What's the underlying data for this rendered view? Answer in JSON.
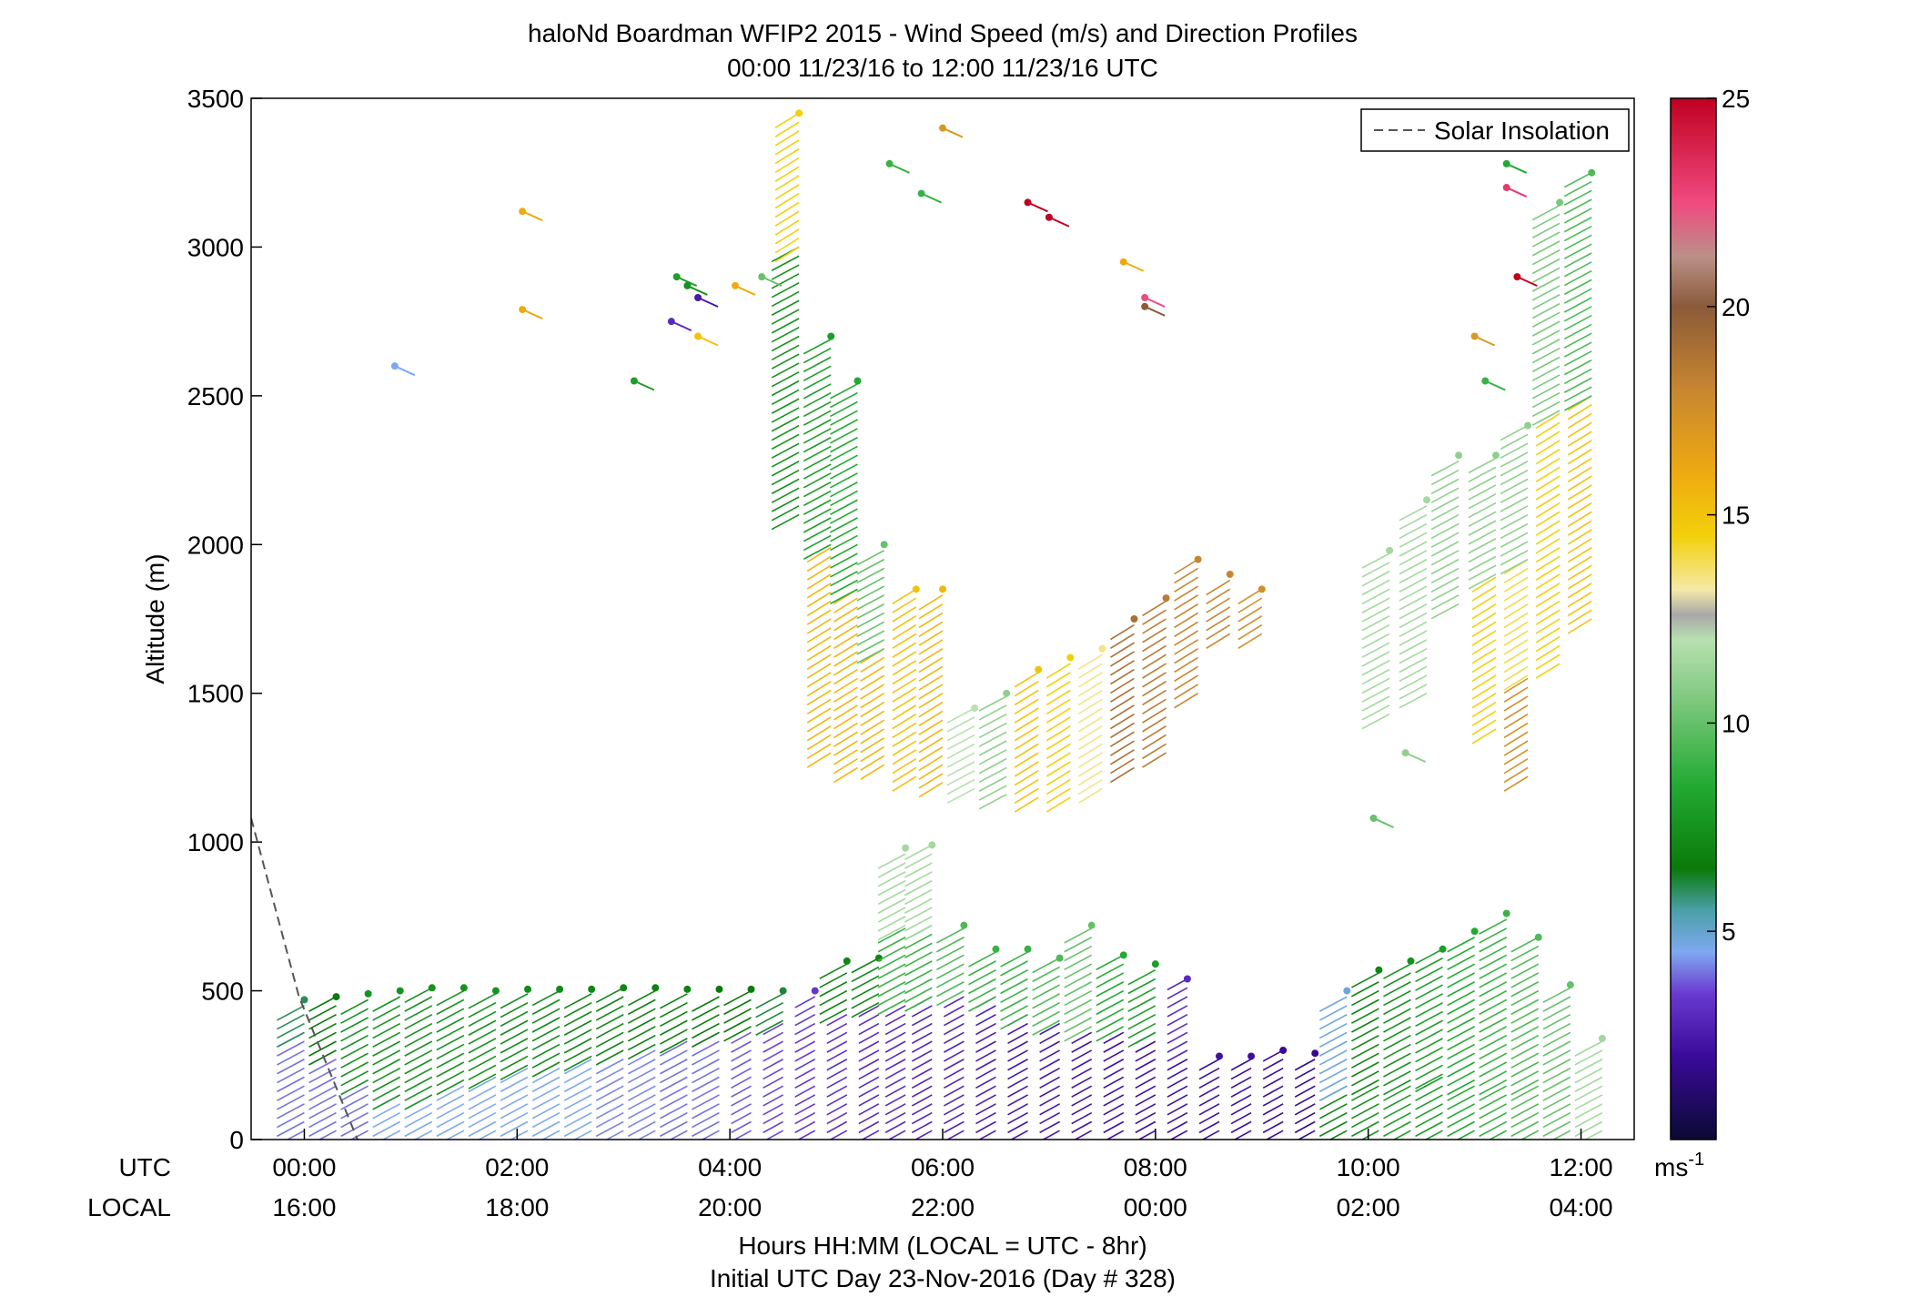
{
  "chart_data": {
    "type": "scatter",
    "title": "haloNd Boardman WFIP2 2015 - Wind Speed (m/s) and Direction Profiles",
    "subtitle": "00:00 11/23/16 to 12:00 11/23/16  UTC",
    "xlabel": "Hours HH:MM  (LOCAL = UTC - 8hr)",
    "xlabel2": "Initial UTC Day 23-Nov-2016 (Day # 328)",
    "ylabel": "Altitude (m)",
    "xlim_hours": [
      -0.5,
      12.5
    ],
    "ylim": [
      0,
      3500
    ],
    "yticks": [
      0,
      500,
      1000,
      1500,
      2000,
      2500,
      3000,
      3500
    ],
    "xtick_row_labels": {
      "utc": "UTC",
      "local": "LOCAL"
    },
    "xticks": [
      {
        "h": 0,
        "utc": "00:00",
        "local": "16:00"
      },
      {
        "h": 2,
        "utc": "02:00",
        "local": "18:00"
      },
      {
        "h": 4,
        "utc": "04:00",
        "local": "20:00"
      },
      {
        "h": 6,
        "utc": "06:00",
        "local": "22:00"
      },
      {
        "h": 8,
        "utc": "08:00",
        "local": "00:00"
      },
      {
        "h": 10,
        "utc": "10:00",
        "local": "02:00"
      },
      {
        "h": 12,
        "utc": "12:00",
        "local": "04:00"
      }
    ],
    "legend": {
      "position": "top-right",
      "entries": [
        "Solar Insolation"
      ]
    },
    "colorbar": {
      "min": 0,
      "max": 25,
      "ticks": [
        5,
        10,
        15,
        20,
        25
      ],
      "unit": "ms-1",
      "stops": [
        [
          0,
          "#0a0a33"
        ],
        [
          2,
          "#3a0a9a"
        ],
        [
          3.5,
          "#6a3ad0"
        ],
        [
          4.5,
          "#7fa8f0"
        ],
        [
          5.5,
          "#4aa0a8"
        ],
        [
          6.5,
          "#0a7a0a"
        ],
        [
          8.5,
          "#22aa33"
        ],
        [
          10.5,
          "#7cc87c"
        ],
        [
          12,
          "#b8e0b0"
        ],
        [
          12.6,
          "#a8a8a8"
        ],
        [
          13.2,
          "#f5e9a8"
        ],
        [
          14.5,
          "#f2d00a"
        ],
        [
          16,
          "#eeaa11"
        ],
        [
          18,
          "#c88630"
        ],
        [
          20,
          "#8a5a3a"
        ],
        [
          21.2,
          "#bb9088"
        ],
        [
          22.5,
          "#f04a80"
        ],
        [
          25,
          "#c00020"
        ]
      ]
    },
    "solar_insolation": [
      [
        -0.5,
        1080
      ],
      [
        -0.05,
        480
      ],
      [
        0.5,
        0
      ]
    ],
    "profiles": [
      {
        "t": 0.0,
        "top": 470,
        "segs": [
          [
            0,
            360,
            4
          ],
          [
            360,
            470,
            6
          ]
        ]
      },
      {
        "t": 0.3,
        "top": 480,
        "segs": [
          [
            0,
            300,
            4
          ],
          [
            300,
            480,
            6.5
          ]
        ]
      },
      {
        "t": 0.6,
        "top": 490,
        "segs": [
          [
            0,
            200,
            4
          ],
          [
            200,
            490,
            7.5
          ]
        ]
      },
      {
        "t": 0.9,
        "top": 500,
        "segs": [
          [
            0,
            150,
            4.5
          ],
          [
            150,
            500,
            7.5
          ]
        ]
      },
      {
        "t": 1.2,
        "top": 510,
        "segs": [
          [
            0,
            150,
            4.5
          ],
          [
            150,
            510,
            7.5
          ]
        ]
      },
      {
        "t": 1.5,
        "top": 510,
        "segs": [
          [
            0,
            200,
            4.5
          ],
          [
            200,
            510,
            7.5
          ]
        ]
      },
      {
        "t": 1.8,
        "top": 500,
        "segs": [
          [
            0,
            220,
            4.5
          ],
          [
            220,
            500,
            7.5
          ]
        ]
      },
      {
        "t": 2.1,
        "top": 505,
        "segs": [
          [
            0,
            250,
            4.5
          ],
          [
            250,
            505,
            7.2
          ]
        ]
      },
      {
        "t": 2.4,
        "top": 505,
        "segs": [
          [
            0,
            260,
            4.5
          ],
          [
            260,
            505,
            7.2
          ]
        ]
      },
      {
        "t": 2.7,
        "top": 505,
        "segs": [
          [
            0,
            280,
            4.5
          ],
          [
            280,
            505,
            7
          ]
        ]
      },
      {
        "t": 3.0,
        "top": 510,
        "segs": [
          [
            0,
            300,
            4.2
          ],
          [
            300,
            510,
            7
          ]
        ]
      },
      {
        "t": 3.3,
        "top": 510,
        "segs": [
          [
            0,
            320,
            4.2
          ],
          [
            320,
            510,
            6.8
          ]
        ]
      },
      {
        "t": 3.6,
        "top": 505,
        "segs": [
          [
            0,
            340,
            4
          ],
          [
            340,
            505,
            6.8
          ]
        ]
      },
      {
        "t": 3.9,
        "top": 505,
        "segs": [
          [
            0,
            360,
            4
          ],
          [
            360,
            505,
            6.5
          ]
        ]
      },
      {
        "t": 4.2,
        "top": 505,
        "segs": [
          [
            0,
            380,
            3.8
          ],
          [
            380,
            505,
            6.5
          ]
        ]
      },
      {
        "t": 4.5,
        "top": 500,
        "segs": [
          [
            0,
            400,
            3.6
          ],
          [
            400,
            500,
            6.2
          ]
        ]
      },
      {
        "t": 4.8,
        "top": 500,
        "segs": [
          [
            0,
            500,
            3.4
          ]
        ]
      },
      {
        "t": 5.1,
        "top": 600,
        "segs": [
          [
            0,
            440,
            3.2
          ],
          [
            440,
            600,
            7
          ]
        ]
      },
      {
        "t": 5.4,
        "top": 610,
        "segs": [
          [
            0,
            460,
            3
          ],
          [
            460,
            610,
            7
          ]
        ]
      },
      {
        "t": 5.65,
        "top": 980,
        "segs": [
          [
            0,
            470,
            3
          ],
          [
            470,
            720,
            9
          ],
          [
            720,
            980,
            11.5
          ]
        ]
      },
      {
        "t": 5.9,
        "top": 990,
        "segs": [
          [
            0,
            480,
            2.8
          ],
          [
            480,
            720,
            9
          ],
          [
            720,
            990,
            11.5
          ]
        ]
      },
      {
        "t": 6.2,
        "top": 720,
        "segs": [
          [
            0,
            500,
            2.8
          ],
          [
            500,
            720,
            9.5
          ]
        ]
      },
      {
        "t": 6.5,
        "top": 640,
        "segs": [
          [
            0,
            480,
            2.6
          ],
          [
            480,
            640,
            9
          ]
        ]
      },
      {
        "t": 6.8,
        "top": 640,
        "segs": [
          [
            0,
            420,
            2.4
          ],
          [
            420,
            640,
            9
          ]
        ]
      },
      {
        "t": 7.1,
        "top": 610,
        "segs": [
          [
            0,
            400,
            2.4
          ],
          [
            400,
            610,
            9.5
          ]
        ]
      },
      {
        "t": 7.4,
        "top": 720,
        "segs": [
          [
            0,
            380,
            2.3
          ],
          [
            380,
            720,
            10
          ]
        ]
      },
      {
        "t": 7.7,
        "top": 620,
        "segs": [
          [
            0,
            380,
            2.2
          ],
          [
            380,
            620,
            8.5
          ]
        ]
      },
      {
        "t": 8.0,
        "top": 590,
        "segs": [
          [
            0,
            360,
            2.2
          ],
          [
            360,
            590,
            8
          ]
        ]
      },
      {
        "t": 8.3,
        "top": 540,
        "segs": [
          [
            0,
            300,
            2.2
          ],
          [
            300,
            540,
            3
          ]
        ]
      },
      {
        "t": 8.6,
        "top": 280,
        "segs": [
          [
            0,
            280,
            2.2
          ]
        ]
      },
      {
        "t": 8.9,
        "top": 280,
        "segs": [
          [
            0,
            280,
            2.1
          ]
        ]
      },
      {
        "t": 9.2,
        "top": 300,
        "segs": [
          [
            0,
            300,
            2
          ]
        ]
      },
      {
        "t": 9.5,
        "top": 290,
        "segs": [
          [
            0,
            290,
            1.8
          ]
        ]
      },
      {
        "t": 9.8,
        "top": 500,
        "segs": [
          [
            0,
            180,
            7
          ],
          [
            180,
            500,
            4.8
          ]
        ]
      },
      {
        "t": 10.1,
        "top": 570,
        "segs": [
          [
            0,
            200,
            7.5
          ],
          [
            200,
            570,
            7
          ]
        ]
      },
      {
        "t": 10.4,
        "top": 600,
        "segs": [
          [
            0,
            200,
            8
          ],
          [
            200,
            600,
            7.5
          ]
        ]
      },
      {
        "t": 10.7,
        "top": 640,
        "segs": [
          [
            0,
            220,
            8
          ],
          [
            220,
            640,
            8
          ]
        ]
      },
      {
        "t": 11.0,
        "top": 700,
        "segs": [
          [
            0,
            200,
            8.5
          ],
          [
            200,
            700,
            8.5
          ]
        ]
      },
      {
        "t": 11.3,
        "top": 760,
        "segs": [
          [
            0,
            200,
            9
          ],
          [
            200,
            760,
            9
          ]
        ]
      },
      {
        "t": 11.6,
        "top": 680,
        "segs": [
          [
            0,
            200,
            9.5
          ],
          [
            200,
            680,
            9.5
          ]
        ]
      },
      {
        "t": 11.9,
        "top": 520,
        "segs": [
          [
            0,
            520,
            10
          ]
        ]
      },
      {
        "t": 12.2,
        "top": 340,
        "segs": [
          [
            0,
            340,
            11.5
          ]
        ]
      },
      {
        "t": 4.65,
        "top": 3450,
        "segs": [
          [
            2100,
            3000,
            7.5
          ],
          [
            3000,
            3450,
            14.5
          ]
        ]
      },
      {
        "t": 4.95,
        "top": 2700,
        "segs": [
          [
            1300,
            2000,
            15.5
          ],
          [
            2000,
            2700,
            8
          ]
        ]
      },
      {
        "t": 5.2,
        "top": 2550,
        "segs": [
          [
            1250,
            1850,
            15.5
          ],
          [
            1850,
            2550,
            8.5
          ]
        ]
      },
      {
        "t": 5.45,
        "top": 2000,
        "segs": [
          [
            1260,
            1650,
            15.5
          ],
          [
            1650,
            2000,
            10
          ]
        ]
      },
      {
        "t": 5.75,
        "top": 1850,
        "segs": [
          [
            1220,
            1850,
            15
          ]
        ]
      },
      {
        "t": 6.0,
        "top": 1850,
        "segs": [
          [
            1200,
            1850,
            15.5
          ]
        ]
      },
      {
        "t": 6.3,
        "top": 1450,
        "segs": [
          [
            1180,
            1450,
            12
          ]
        ]
      },
      {
        "t": 6.6,
        "top": 1500,
        "segs": [
          [
            1160,
            1500,
            11
          ]
        ]
      },
      {
        "t": 6.9,
        "top": 1580,
        "segs": [
          [
            1150,
            1580,
            15
          ]
        ]
      },
      {
        "t": 7.2,
        "top": 1620,
        "segs": [
          [
            1150,
            1620,
            14.5
          ]
        ]
      },
      {
        "t": 7.5,
        "top": 1650,
        "segs": [
          [
            1180,
            1650,
            13.5
          ]
        ]
      },
      {
        "t": 7.8,
        "top": 1750,
        "segs": [
          [
            1250,
            1750,
            19
          ]
        ]
      },
      {
        "t": 8.1,
        "top": 1820,
        "segs": [
          [
            1300,
            1820,
            18.5
          ]
        ]
      },
      {
        "t": 8.4,
        "top": 1950,
        "segs": [
          [
            1500,
            1950,
            18
          ]
        ]
      },
      {
        "t": 8.7,
        "top": 1900,
        "segs": [
          [
            1700,
            1900,
            18
          ]
        ]
      },
      {
        "t": 9.0,
        "top": 1850,
        "segs": [
          [
            1700,
            1850,
            17.5
          ]
        ]
      },
      {
        "t": 10.2,
        "top": 1980,
        "segs": [
          [
            1430,
            1980,
            11.5
          ]
        ]
      },
      {
        "t": 10.55,
        "top": 2150,
        "segs": [
          [
            1500,
            2150,
            11.5
          ]
        ]
      },
      {
        "t": 10.85,
        "top": 2300,
        "segs": [
          [
            1800,
            2300,
            11
          ]
        ]
      },
      {
        "t": 11.2,
        "top": 2300,
        "segs": [
          [
            1380,
            1900,
            14.5
          ],
          [
            1900,
            2300,
            11
          ]
        ]
      },
      {
        "t": 11.5,
        "top": 2400,
        "segs": [
          [
            1220,
            1560,
            17.5
          ],
          [
            1560,
            1950,
            14
          ],
          [
            1950,
            2400,
            11
          ]
        ]
      },
      {
        "t": 11.8,
        "top": 3150,
        "segs": [
          [
            1600,
            2450,
            14.5
          ],
          [
            2450,
            3150,
            10.5
          ]
        ]
      },
      {
        "t": 12.1,
        "top": 3250,
        "segs": [
          [
            1750,
            2500,
            15
          ],
          [
            2500,
            3250,
            9.5
          ]
        ]
      }
    ],
    "isolated_points": [
      [
        0.85,
        2600,
        4.5
      ],
      [
        2.05,
        3120,
        16
      ],
      [
        2.05,
        2790,
        16
      ],
      [
        3.5,
        2900,
        8
      ],
      [
        3.6,
        2870,
        7.5
      ],
      [
        3.45,
        2750,
        3
      ],
      [
        3.7,
        2830,
        2.5
      ],
      [
        3.7,
        2700,
        15
      ],
      [
        3.1,
        2550,
        8
      ],
      [
        4.05,
        2870,
        16
      ],
      [
        4.3,
        2900,
        10
      ],
      [
        5.5,
        3280,
        9
      ],
      [
        5.8,
        3180,
        9
      ],
      [
        6.0,
        3400,
        17
      ],
      [
        6.8,
        3150,
        25
      ],
      [
        7.0,
        3100,
        25
      ],
      [
        7.7,
        2950,
        16
      ],
      [
        7.9,
        2830,
        22.5
      ],
      [
        7.9,
        2800,
        20
      ],
      [
        10.05,
        1080,
        10
      ],
      [
        10.35,
        1300,
        11
      ],
      [
        11.0,
        2700,
        17
      ],
      [
        11.1,
        2550,
        9
      ],
      [
        11.3,
        3280,
        8.5
      ],
      [
        11.3,
        3200,
        23
      ],
      [
        11.4,
        2900,
        25
      ]
    ]
  }
}
